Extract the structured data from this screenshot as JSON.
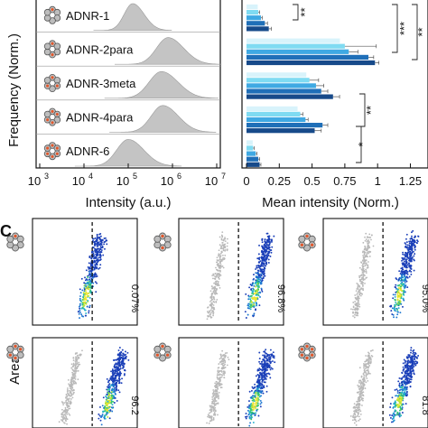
{
  "panel_c_label": "C",
  "chart_data": [
    {
      "type": "area",
      "ylabel": "Frequency (Norm.)",
      "xlabel": "Intensity (a.u.)",
      "x_scale": "log",
      "xlim": [
        1000,
        10000000
      ],
      "x_ticks": [
        "10",
        "10",
        "10",
        "10",
        "10"
      ],
      "x_tick_exponents": [
        "3",
        "4",
        "5",
        "6",
        "7"
      ],
      "color": "#c4c4c4",
      "series": [
        {
          "name": "ADNR-1",
          "peak_log10": 5.1,
          "width": 0.22
        },
        {
          "name": "ADNR-2para",
          "peak_log10": 5.9,
          "width": 0.3
        },
        {
          "name": "ADNR-3meta",
          "peak_log10": 5.75,
          "width": 0.32
        },
        {
          "name": "ADNR-4para",
          "peak_log10": 5.78,
          "width": 0.3
        },
        {
          "name": "ADNR-6",
          "peak_log10": 5.0,
          "width": 0.3
        }
      ]
    },
    {
      "type": "bar",
      "orientation": "horizontal",
      "xlabel": "Mean intensity (Norm.)",
      "xlim": [
        0,
        1.35
      ],
      "x_ticks": [
        "0",
        "0.25",
        "0.5",
        "0.75",
        "1",
        "1.25"
      ],
      "x_tick_values": [
        0,
        0.25,
        0.5,
        0.75,
        1,
        1.25
      ],
      "bar_colors": [
        "#d8f3fb",
        "#7fdbf2",
        "#3fa9e3",
        "#1f6fb8",
        "#174a8a"
      ],
      "groups": [
        {
          "name": "ADNR-1",
          "values": [
            0.09,
            0.11,
            0.14,
            0.17
          ],
          "errors": [
            0.01,
            0.01,
            0.02,
            0.02
          ]
        },
        {
          "name": "ADNR-2para",
          "values": [
            0.75,
            0.78,
            0.93,
            0.98
          ],
          "errors": [
            0.24,
            0.07,
            0.04,
            0.03
          ]
        },
        {
          "name": "ADNR-3meta",
          "values": [
            0.48,
            0.53,
            0.57,
            0.66
          ],
          "errors": [
            0.07,
            0.06,
            0.05,
            0.05
          ]
        },
        {
          "name": "ADNR-4para",
          "values": [
            0.41,
            0.45,
            0.58,
            0.52
          ],
          "errors": [
            0.02,
            0.02,
            0.04,
            0.05
          ]
        },
        {
          "name": "ADNR-6",
          "values": [
            0.05,
            0.07,
            0.09,
            0.1
          ],
          "errors": [
            0.01,
            0.01,
            0.01,
            0.01
          ]
        }
      ],
      "significance": [
        "**",
        "***",
        "**",
        "**",
        "*"
      ]
    },
    {
      "type": "scatter",
      "ylabel": "Area",
      "gate_style": "dashed",
      "gate_percentages": [
        "0.07%",
        "96.8%",
        "95.0%",
        "96.2",
        "",
        "81.8"
      ]
    }
  ]
}
